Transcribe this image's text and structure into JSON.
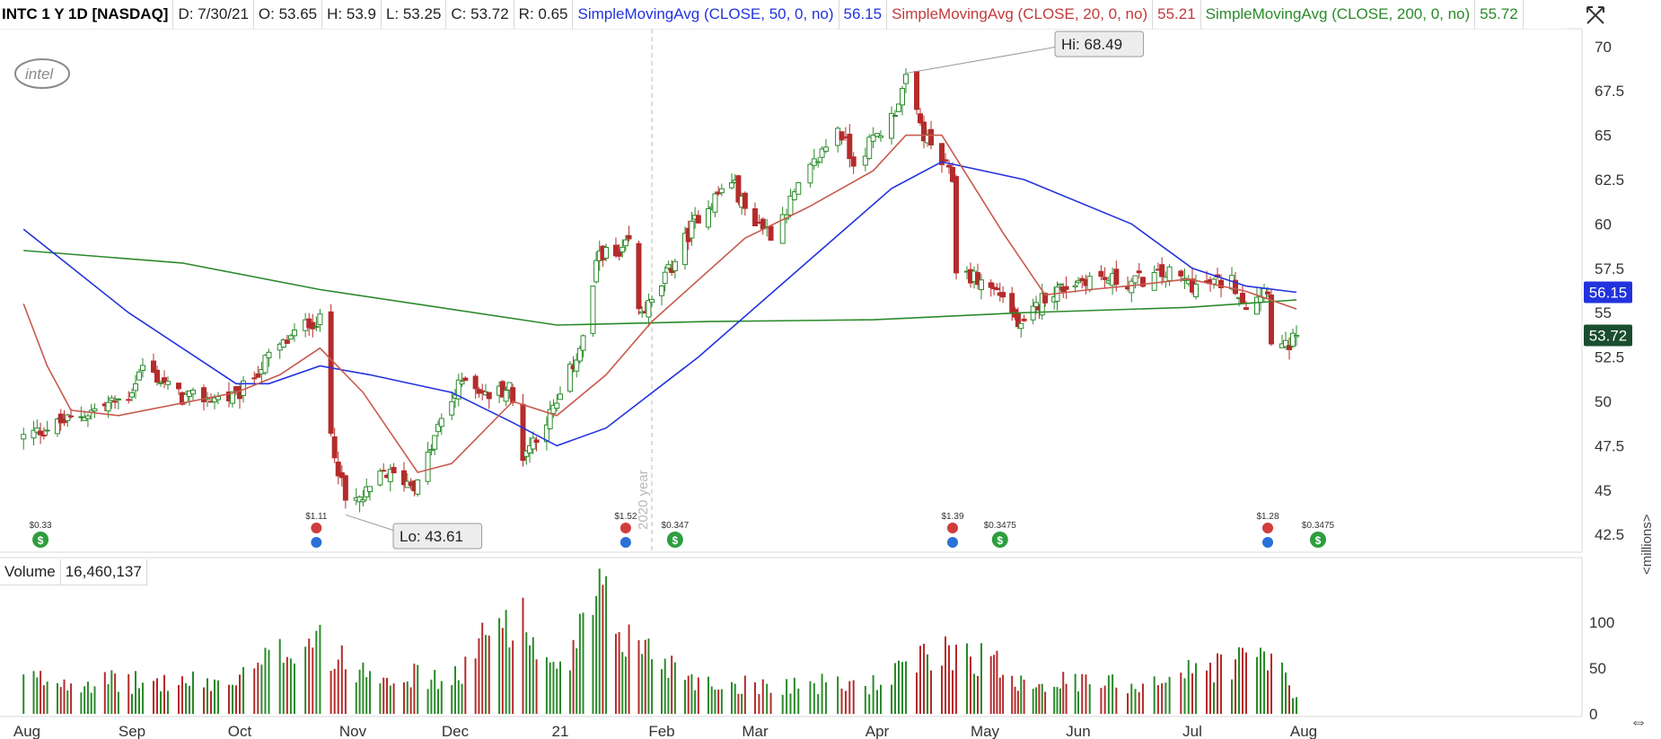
{
  "header": {
    "symbol": "INTC 1 Y 1D [NASDAQ]",
    "date": "D: 7/30/21",
    "open": "O: 53.65",
    "high": "H: 53.9",
    "low": "L: 53.25",
    "close": "C: 53.72",
    "range": "R: 0.65",
    "ma50_label": "SimpleMovingAvg (CLOSE, 50, 0, no)",
    "ma50_value": "56.15",
    "ma20_label": "SimpleMovingAvg (CLOSE, 20, 0, no)",
    "ma20_value": "55.21",
    "ma200_label": "SimpleMovingAvg (CLOSE, 200, 0, no)",
    "ma200_value": "55.72"
  },
  "logo_text": "intel",
  "volume_header": {
    "label": "Volume",
    "value": "16,460,137"
  },
  "units_label": "<millions>",
  "colors": {
    "up": "#2a8a2a",
    "down": "#b52b2b",
    "ma50": "#2233dd",
    "ma20": "#c85a4e",
    "ma200": "#2a8a2a",
    "last_price_bg": "#1a4d2e",
    "ma50_tag_bg": "#2233dd"
  },
  "chart_data": {
    "type": "candlestick",
    "title": "INTC 1 Y 1D [NASDAQ]",
    "y_ticks": [
      "70",
      "67.5",
      "65",
      "62.5",
      "60",
      "57.5",
      "55",
      "52.5",
      "50",
      "47.5",
      "45",
      "42.5"
    ],
    "x_tick_labels": [
      "Aug",
      "Sep",
      "Oct",
      "Nov",
      "Dec",
      "21",
      "Feb",
      "Mar",
      "Apr",
      "May",
      "Jun",
      "Jul",
      "Aug"
    ],
    "ylim": [
      41.5,
      71
    ],
    "volume_ticks": [
      "100",
      "50",
      "0"
    ],
    "volume_ylim": [
      0,
      140
    ],
    "year_marker": "2020 year",
    "hi_label": "Hi: 68.49",
    "lo_label": "Lo: 43.61",
    "last_price_tag": "53.72",
    "ma50_tag": "56.15",
    "price_keypoints": [
      [
        "2020-07-31",
        48.0
      ],
      [
        "2020-08-14",
        49.0
      ],
      [
        "2020-08-31",
        50.3
      ],
      [
        "2020-09-04",
        52.0
      ],
      [
        "2020-09-15",
        50.2
      ],
      [
        "2020-09-30",
        50.2
      ],
      [
        "2020-10-09",
        52.5
      ],
      [
        "2020-10-20",
        54.5
      ],
      [
        "2020-10-23",
        54.5
      ],
      [
        "2020-10-26",
        48.2
      ],
      [
        "2020-10-30",
        44.3
      ],
      [
        "2020-11-04",
        44.5
      ],
      [
        "2020-11-10",
        46.0
      ],
      [
        "2020-11-20",
        45.3
      ],
      [
        "2020-11-27",
        49.0
      ],
      [
        "2020-12-04",
        51.5
      ],
      [
        "2020-12-10",
        50.3
      ],
      [
        "2020-12-17",
        50.8
      ],
      [
        "2020-12-21",
        47.0
      ],
      [
        "2020-12-31",
        49.8
      ],
      [
        "2021-01-08",
        53.5
      ],
      [
        "2021-01-13",
        58.5
      ],
      [
        "2021-01-19",
        58.0
      ],
      [
        "2021-01-22",
        59.0
      ],
      [
        "2021-01-25",
        55.0
      ],
      [
        "2021-01-29",
        55.5
      ],
      [
        "2021-02-12",
        60.5
      ],
      [
        "2021-02-22",
        62.5
      ],
      [
        "2021-02-26",
        60.8
      ],
      [
        "2021-03-05",
        59.5
      ],
      [
        "2021-03-15",
        63.0
      ],
      [
        "2021-03-22",
        65.5
      ],
      [
        "2021-03-26",
        63.5
      ],
      [
        "2021-04-05",
        66.0
      ],
      [
        "2021-04-09",
        68.0
      ],
      [
        "2021-04-14",
        65.0
      ],
      [
        "2021-04-22",
        62.5
      ],
      [
        "2021-04-23",
        57.5
      ],
      [
        "2021-05-07",
        56.0
      ],
      [
        "2021-05-13",
        54.0
      ],
      [
        "2021-05-21",
        56.0
      ],
      [
        "2021-06-04",
        57.0
      ],
      [
        "2021-06-14",
        56.7
      ],
      [
        "2021-06-25",
        57.2
      ],
      [
        "2021-07-02",
        56.5
      ],
      [
        "2021-07-12",
        56.8
      ],
      [
        "2021-07-16",
        55.5
      ],
      [
        "2021-07-22",
        56.5
      ],
      [
        "2021-07-23",
        53.5
      ],
      [
        "2021-07-27",
        53.0
      ],
      [
        "2021-07-30",
        53.72
      ]
    ],
    "ma20_points": [
      [
        "2020-07-31",
        55.5
      ],
      [
        "2020-08-07",
        52.0
      ],
      [
        "2020-08-14",
        49.5
      ],
      [
        "2020-08-28",
        49.2
      ],
      [
        "2020-09-30",
        50.5
      ],
      [
        "2020-10-12",
        51.5
      ],
      [
        "2020-10-23",
        53.0
      ],
      [
        "2020-11-04",
        50.5
      ],
      [
        "2020-11-20",
        46.0
      ],
      [
        "2020-11-30",
        46.5
      ],
      [
        "2020-12-18",
        50.0
      ],
      [
        "2020-12-31",
        49.2
      ],
      [
        "2021-01-15",
        51.5
      ],
      [
        "2021-01-29",
        54.5
      ],
      [
        "2021-02-26",
        59.2
      ],
      [
        "2021-03-15",
        61.0
      ],
      [
        "2021-03-31",
        63.0
      ],
      [
        "2021-04-09",
        65.0
      ],
      [
        "2021-04-19",
        65.0
      ],
      [
        "2021-05-07",
        59.5
      ],
      [
        "2021-05-21",
        56.0
      ],
      [
        "2021-06-04",
        56.3
      ],
      [
        "2021-06-14",
        56.5
      ],
      [
        "2021-06-30",
        56.9
      ],
      [
        "2021-07-16",
        56.2
      ],
      [
        "2021-07-30",
        55.21
      ]
    ],
    "ma50_points": [
      [
        "2020-07-31",
        59.7
      ],
      [
        "2020-08-31",
        55.0
      ],
      [
        "2020-09-30",
        51.0
      ],
      [
        "2020-10-09",
        51.0
      ],
      [
        "2020-10-23",
        52.0
      ],
      [
        "2020-11-06",
        51.5
      ],
      [
        "2020-11-30",
        50.5
      ],
      [
        "2020-12-18",
        48.8
      ],
      [
        "2020-12-31",
        47.5
      ],
      [
        "2021-01-15",
        48.5
      ],
      [
        "2021-02-12",
        52.5
      ],
      [
        "2021-03-15",
        58.0
      ],
      [
        "2021-04-05",
        62.0
      ],
      [
        "2021-04-19",
        63.5
      ],
      [
        "2021-05-14",
        62.5
      ],
      [
        "2021-06-15",
        60.0
      ],
      [
        "2021-07-01",
        57.5
      ],
      [
        "2021-07-16",
        56.5
      ],
      [
        "2021-07-30",
        56.15
      ]
    ],
    "ma200_points": [
      [
        "2020-07-31",
        58.5
      ],
      [
        "2020-09-15",
        57.8
      ],
      [
        "2020-10-23",
        56.3
      ],
      [
        "2020-12-31",
        54.3
      ],
      [
        "2021-02-15",
        54.5
      ],
      [
        "2021-03-31",
        54.6
      ],
      [
        "2021-05-14",
        55.0
      ],
      [
        "2021-06-30",
        55.3
      ],
      [
        "2021-07-30",
        55.72
      ]
    ],
    "volume_keypoints": [
      [
        "2020-07-31",
        40
      ],
      [
        "2020-08-31",
        36
      ],
      [
        "2020-09-30",
        36
      ],
      [
        "2020-10-23",
        100
      ],
      [
        "2020-10-26",
        60
      ],
      [
        "2020-11-30",
        36
      ],
      [
        "2020-12-18",
        123
      ],
      [
        "2020-12-31",
        40
      ],
      [
        "2021-01-13",
        127
      ],
      [
        "2021-01-22",
        85
      ],
      [
        "2021-02-15",
        34
      ],
      [
        "2021-03-31",
        34
      ],
      [
        "2021-04-23",
        78
      ],
      [
        "2021-05-14",
        38
      ],
      [
        "2021-06-15",
        34
      ],
      [
        "2021-07-23",
        70
      ],
      [
        "2021-07-30",
        16.46
      ]
    ],
    "events": [
      {
        "date": "2020-08-05",
        "type": "dividend",
        "amount": "$0.33"
      },
      {
        "date": "2020-10-22",
        "type": "earnings",
        "amount": "$1.11"
      },
      {
        "date": "2021-01-21",
        "type": "earnings",
        "amount": "$1.52"
      },
      {
        "date": "2021-02-05",
        "type": "dividend",
        "amount": "$0.347"
      },
      {
        "date": "2021-04-22",
        "type": "earnings",
        "amount": "$1.39"
      },
      {
        "date": "2021-05-06",
        "type": "dividend",
        "amount": "$0.3475"
      },
      {
        "date": "2021-07-22",
        "type": "earnings",
        "amount": "$1.28"
      },
      {
        "date": "2021-08-05",
        "type": "dividend",
        "amount": "$0.3475"
      }
    ]
  }
}
